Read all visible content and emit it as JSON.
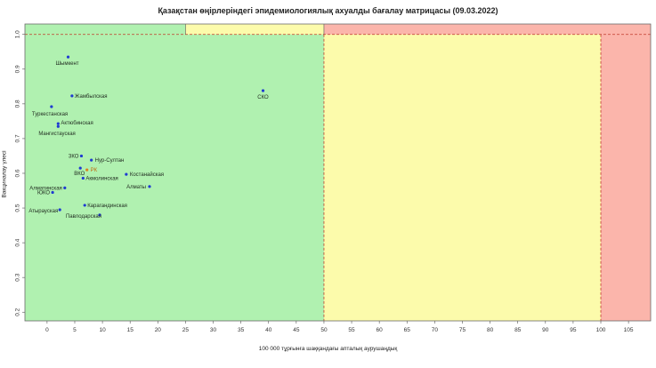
{
  "chart_data": {
    "type": "scatter",
    "title": "Қазақстан өңірлеріндегі эпидемиологиялық ахуалды бағалау матрицасы  (09.03.2022)",
    "xlabel": "100 000 тұрғынға шаққандағы апталық аурушаңдық",
    "ylabel": "Вакциналау үлесі",
    "xlim": [
      -4,
      109
    ],
    "ylim": [
      0.175,
      1.03
    ],
    "xticks": [
      "0",
      "5",
      "10",
      "15",
      "20",
      "25",
      "30",
      "35",
      "40",
      "45",
      "50",
      "55",
      "60",
      "65",
      "70",
      "75",
      "80",
      "85",
      "90",
      "95",
      "100",
      "105"
    ],
    "yticks": [
      "0.2",
      "0.3",
      "0.4",
      "0.5",
      "0.6",
      "0.7",
      "0.8",
      "0.9",
      "1.0"
    ],
    "zones": {
      "green": "#b0f1b0",
      "yellow": "#fcfbab",
      "red": "#fbb5ab"
    },
    "points": [
      {
        "label": "Шымкент",
        "x": 3.8,
        "y": 0.935,
        "color": "#1f3bd1"
      },
      {
        "label": "СКО",
        "x": 39.0,
        "y": 0.838,
        "color": "#1f3bd1"
      },
      {
        "label": "Жамбылская",
        "x": 4.5,
        "y": 0.823,
        "color": "#1f3bd1"
      },
      {
        "label": "Туркестанская",
        "x": 0.8,
        "y": 0.792,
        "color": "#1f3bd1"
      },
      {
        "label": "Актюбинская",
        "x": 2.0,
        "y": 0.743,
        "color": "#1f3bd1"
      },
      {
        "label": "Мангистауская",
        "x": 2.0,
        "y": 0.735,
        "color": "#1f3bd1"
      },
      {
        "label": "ЗКО",
        "x": 6.2,
        "y": 0.65,
        "color": "#1f3bd1"
      },
      {
        "label": "Нур-Султан",
        "x": 8.0,
        "y": 0.638,
        "color": "#1f3bd1"
      },
      {
        "label": "ВКО",
        "x": 6.0,
        "y": 0.615,
        "color": "#1f3bd1"
      },
      {
        "label": "РК",
        "x": 7.2,
        "y": 0.61,
        "color": "#d98324"
      },
      {
        "label": "Костанайская",
        "x": 14.3,
        "y": 0.597,
        "color": "#1f3bd1"
      },
      {
        "label": "Акмолинская",
        "x": 6.5,
        "y": 0.586,
        "color": "#1f3bd1"
      },
      {
        "label": "Алматы",
        "x": 18.5,
        "y": 0.562,
        "color": "#1f3bd1"
      },
      {
        "label": "Алматинская",
        "x": 3.2,
        "y": 0.558,
        "color": "#1f3bd1"
      },
      {
        "label": "ЮКО",
        "x": 1.0,
        "y": 0.545,
        "color": "#1f3bd1"
      },
      {
        "label": "Карагандинская",
        "x": 6.8,
        "y": 0.508,
        "color": "#1f3bd1"
      },
      {
        "label": "Атырауская",
        "x": 2.3,
        "y": 0.495,
        "color": "#1f3bd1"
      },
      {
        "label": "Павлодарская",
        "x": 9.5,
        "y": 0.48,
        "color": "#1f3bd1"
      }
    ]
  }
}
